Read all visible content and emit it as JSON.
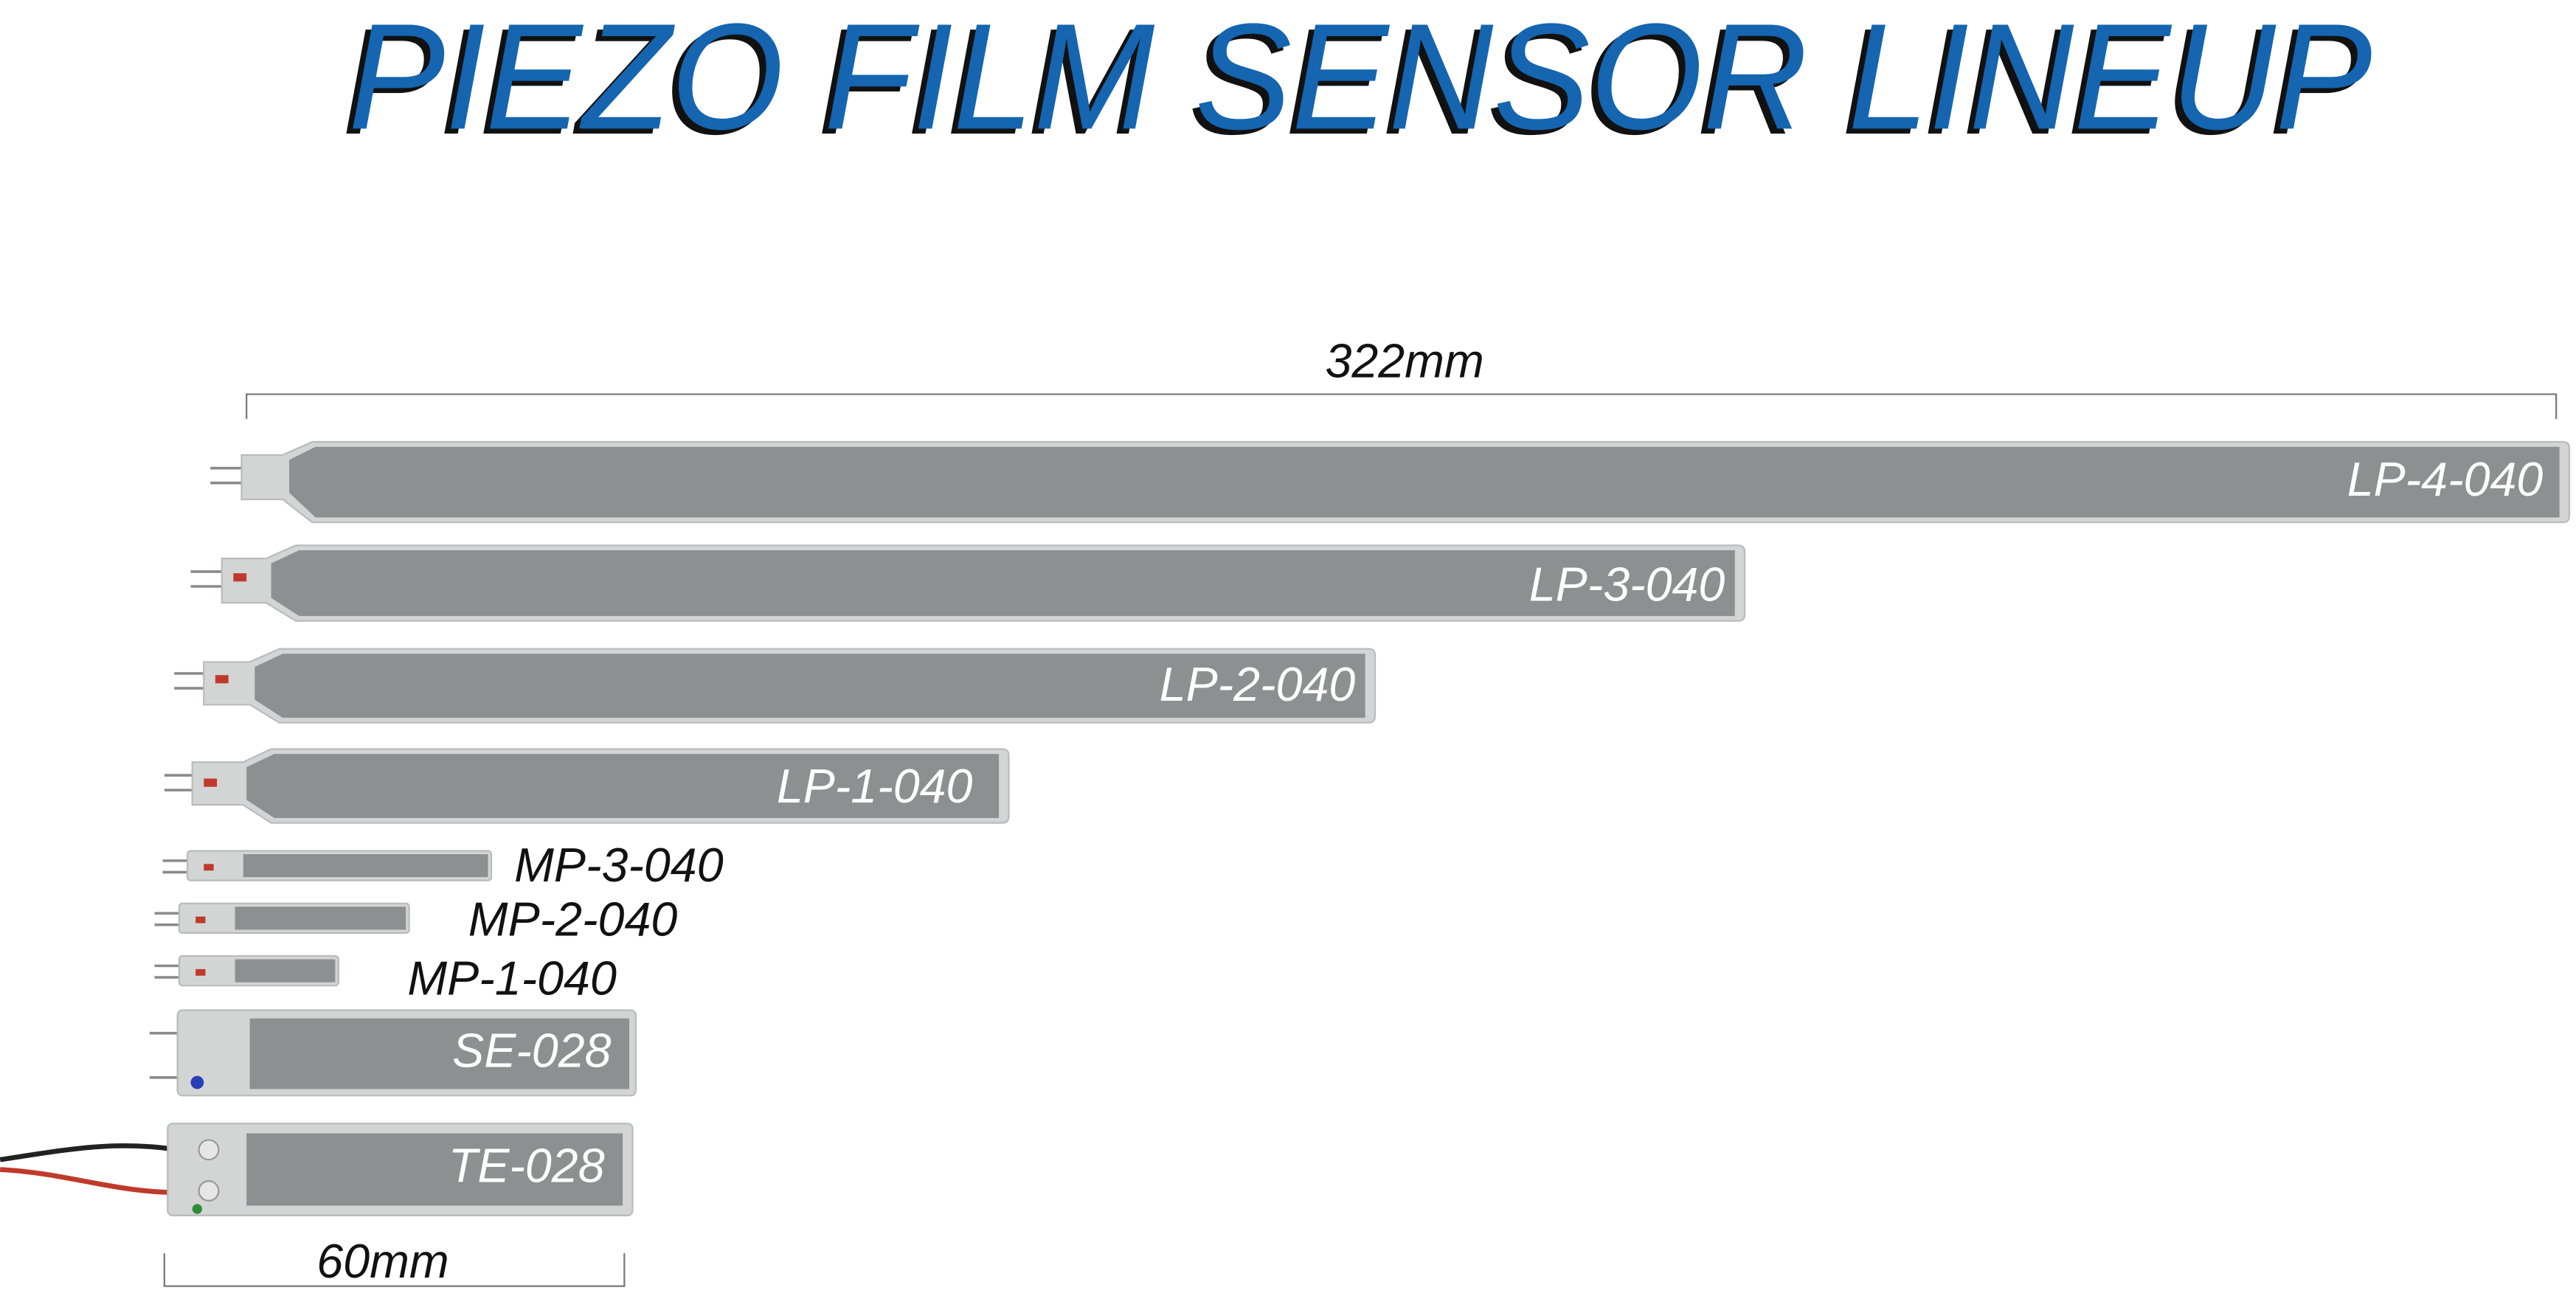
{
  "title": "PIEZO FILM SENSOR LINEUP",
  "dimensions": {
    "length": "322mm",
    "width": "60mm"
  },
  "sensors": [
    "LP-4-040",
    "LP-3-040",
    "LP-2-040",
    "LP-1-040",
    "MP-3-040",
    "MP-2-040",
    "MP-1-040",
    "SE-028",
    "TE-028"
  ]
}
